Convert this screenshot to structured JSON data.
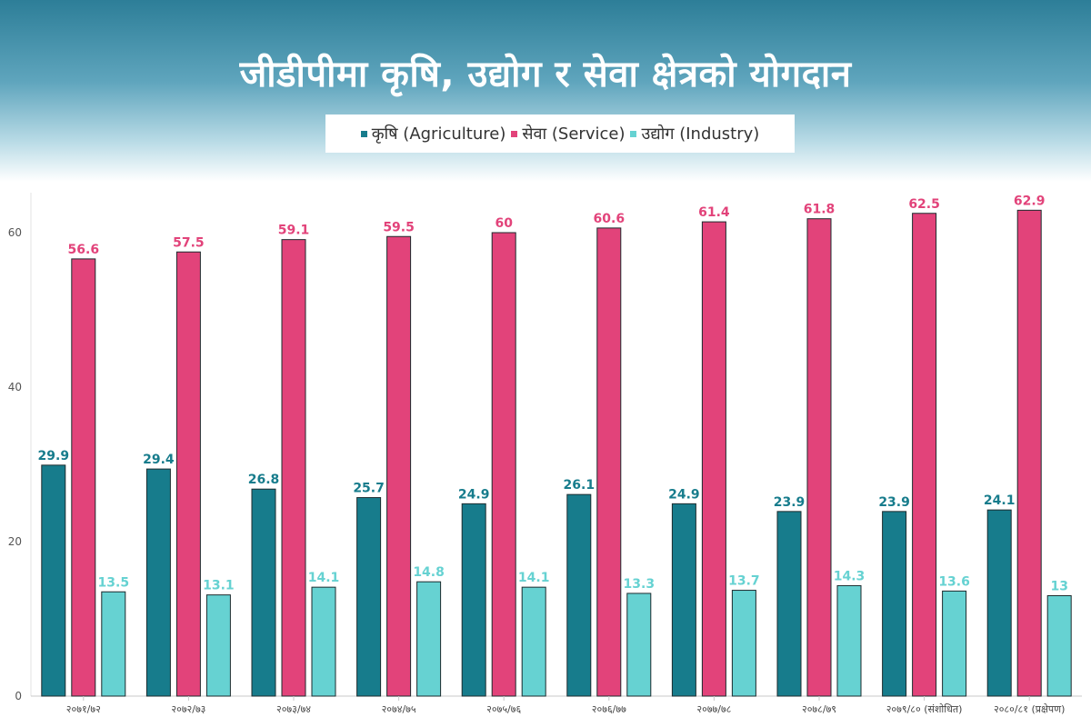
{
  "title": "जीडीपीमा कृषि, उद्योग र सेवा क्षेत्रको योगदान",
  "colors": {
    "agriculture": "#177c8c",
    "service": "#e2437a",
    "industry": "#66d2d2"
  },
  "chart_data": {
    "type": "bar",
    "categories": [
      "२०७१/७२",
      "२०७२/७३",
      "२०७३/७४",
      "२०७४/७५",
      "२०७५/७६",
      "२०७६/७७",
      "२०७७/७८",
      "२०७८/७९",
      "२०७९/८० (संशोधित)",
      "२०८०/८१ (प्रक्षेपण)"
    ],
    "series": [
      {
        "name": "कृषि (Agriculture)",
        "values": [
          29.9,
          29.4,
          26.8,
          25.7,
          24.9,
          26.1,
          24.9,
          23.9,
          23.9,
          24.1
        ]
      },
      {
        "name": "सेवा (Service)",
        "values": [
          56.6,
          57.5,
          59.1,
          59.5,
          60,
          60.6,
          61.4,
          61.8,
          62.5,
          62.9
        ]
      },
      {
        "name": "उद्योग (Industry)",
        "values": [
          13.5,
          13.1,
          14.1,
          14.8,
          14.1,
          13.3,
          13.7,
          14.3,
          13.6,
          13
        ]
      }
    ],
    "yticks": [
      0,
      20,
      40,
      60
    ],
    "ylim": [
      0,
      65
    ],
    "grid": false,
    "legend_position": "top-center",
    "title": "जीडीपीमा कृषि, उद्योग र सेवा क्षेत्रको योगदान",
    "xlabel": "",
    "ylabel": ""
  }
}
